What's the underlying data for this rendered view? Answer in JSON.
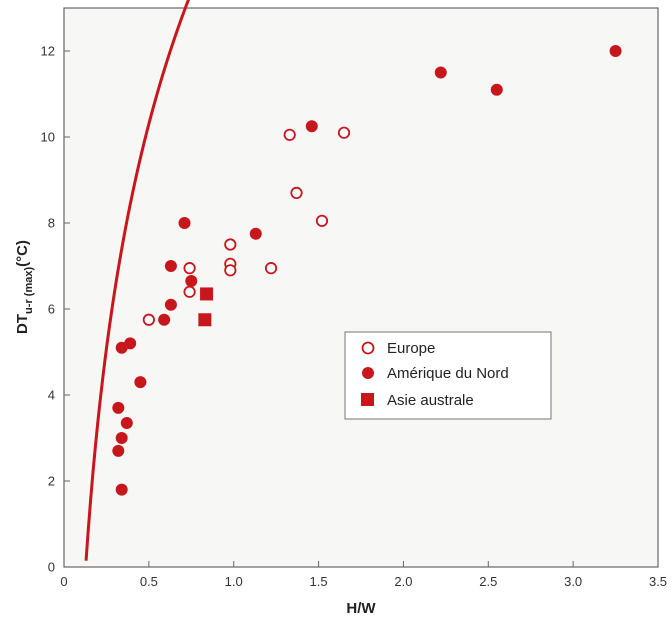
{
  "chart_data": {
    "type": "scatter",
    "xlabel": "H/W",
    "ylabel": {
      "main": "DT",
      "sub": "u-r (max)",
      "unit": "(°C)"
    },
    "xlim": [
      0,
      3.5
    ],
    "ylim": [
      0,
      13
    ],
    "x_ticks": [
      0,
      0.5,
      1.0,
      1.5,
      2.0,
      2.5,
      3.0,
      3.5
    ],
    "x_tick_labels": [
      "0",
      "0.5",
      "1.0",
      "1.5",
      "2.0",
      "2.5",
      "3.0",
      "3.5"
    ],
    "y_ticks": [
      0,
      2,
      4,
      6,
      8,
      10,
      12
    ],
    "y_tick_labels": [
      "0",
      "2",
      "4",
      "6",
      "8",
      "10",
      "12"
    ],
    "grid": false,
    "legend_position": "center-right",
    "colors": {
      "marker": "#c8161d",
      "curve": "#c8161d",
      "plot_bg": "#f7f7f5",
      "frame": "#666666"
    },
    "series": [
      {
        "name": "Europe",
        "marker": "open-circle",
        "points": [
          [
            0.5,
            5.75
          ],
          [
            0.74,
            6.95
          ],
          [
            0.74,
            6.4
          ],
          [
            0.98,
            7.5
          ],
          [
            0.98,
            7.05
          ],
          [
            0.98,
            6.9
          ],
          [
            1.22,
            6.95
          ],
          [
            1.33,
            10.05
          ],
          [
            1.37,
            8.7
          ],
          [
            1.52,
            8.05
          ],
          [
            1.65,
            10.1
          ]
        ]
      },
      {
        "name": "Amérique du Nord",
        "marker": "filled-circle",
        "points": [
          [
            0.32,
            3.7
          ],
          [
            0.32,
            2.7
          ],
          [
            0.34,
            1.8
          ],
          [
            0.34,
            3.0
          ],
          [
            0.34,
            5.1
          ],
          [
            0.37,
            3.35
          ],
          [
            0.39,
            5.2
          ],
          [
            0.45,
            4.3
          ],
          [
            0.59,
            5.75
          ],
          [
            0.63,
            6.1
          ],
          [
            0.63,
            7.0
          ],
          [
            0.71,
            8.0
          ],
          [
            0.75,
            6.65
          ],
          [
            1.13,
            7.75
          ],
          [
            1.46,
            10.25
          ],
          [
            2.22,
            11.5
          ],
          [
            2.55,
            11.1
          ],
          [
            3.25,
            12.0
          ]
        ]
      },
      {
        "name": "Asie australe",
        "marker": "filled-square",
        "points": [
          [
            0.83,
            5.75
          ],
          [
            0.84,
            6.35
          ]
        ]
      }
    ],
    "fit_curve": {
      "type": "logarithmic",
      "a": 7.54,
      "b": 15.53,
      "x_range": [
        0.13,
        3.43
      ]
    }
  }
}
